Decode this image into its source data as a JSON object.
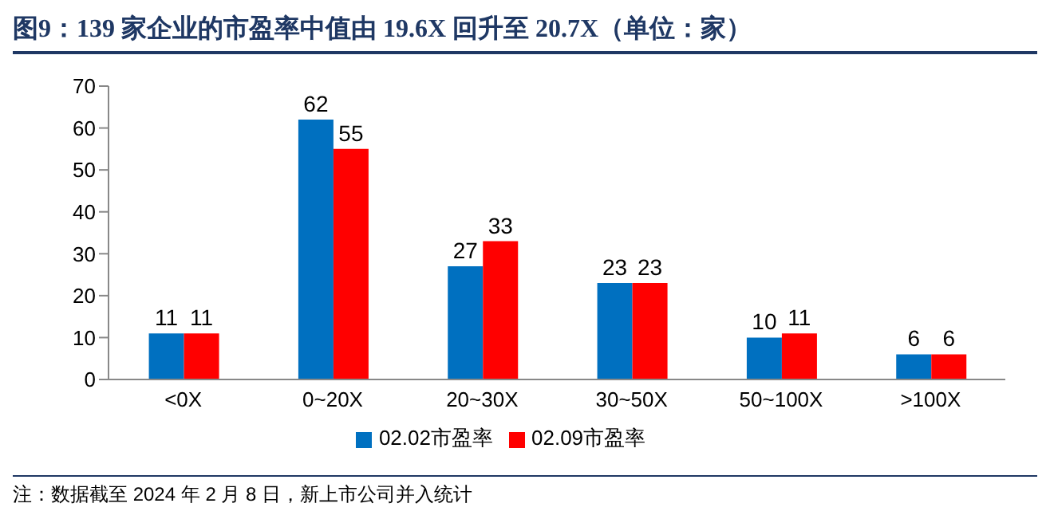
{
  "chart_data": {
    "type": "bar",
    "title": "图9：139 家企业的市盈率中值由 19.6X 回升至 20.7X（单位：家）",
    "categories": [
      "<0X",
      "0~20X",
      "20~30X",
      "30~50X",
      "50~100X",
      ">100X"
    ],
    "series": [
      {
        "name": "02.02市盈率",
        "color": "#0070c0",
        "values": [
          11,
          62,
          27,
          23,
          10,
          6
        ]
      },
      {
        "name": "02.09市盈率",
        "color": "#ff0000",
        "values": [
          11,
          55,
          33,
          23,
          11,
          6
        ]
      }
    ],
    "ylim": [
      0,
      70
    ],
    "yticks": [
      0,
      10,
      20,
      30,
      40,
      50,
      60,
      70
    ],
    "grid": false,
    "legend": "bottom",
    "data_labels": true,
    "annotations": [
      "注：数据截至 2024 年 2 月 8 日，新上市公司并入统计"
    ]
  }
}
